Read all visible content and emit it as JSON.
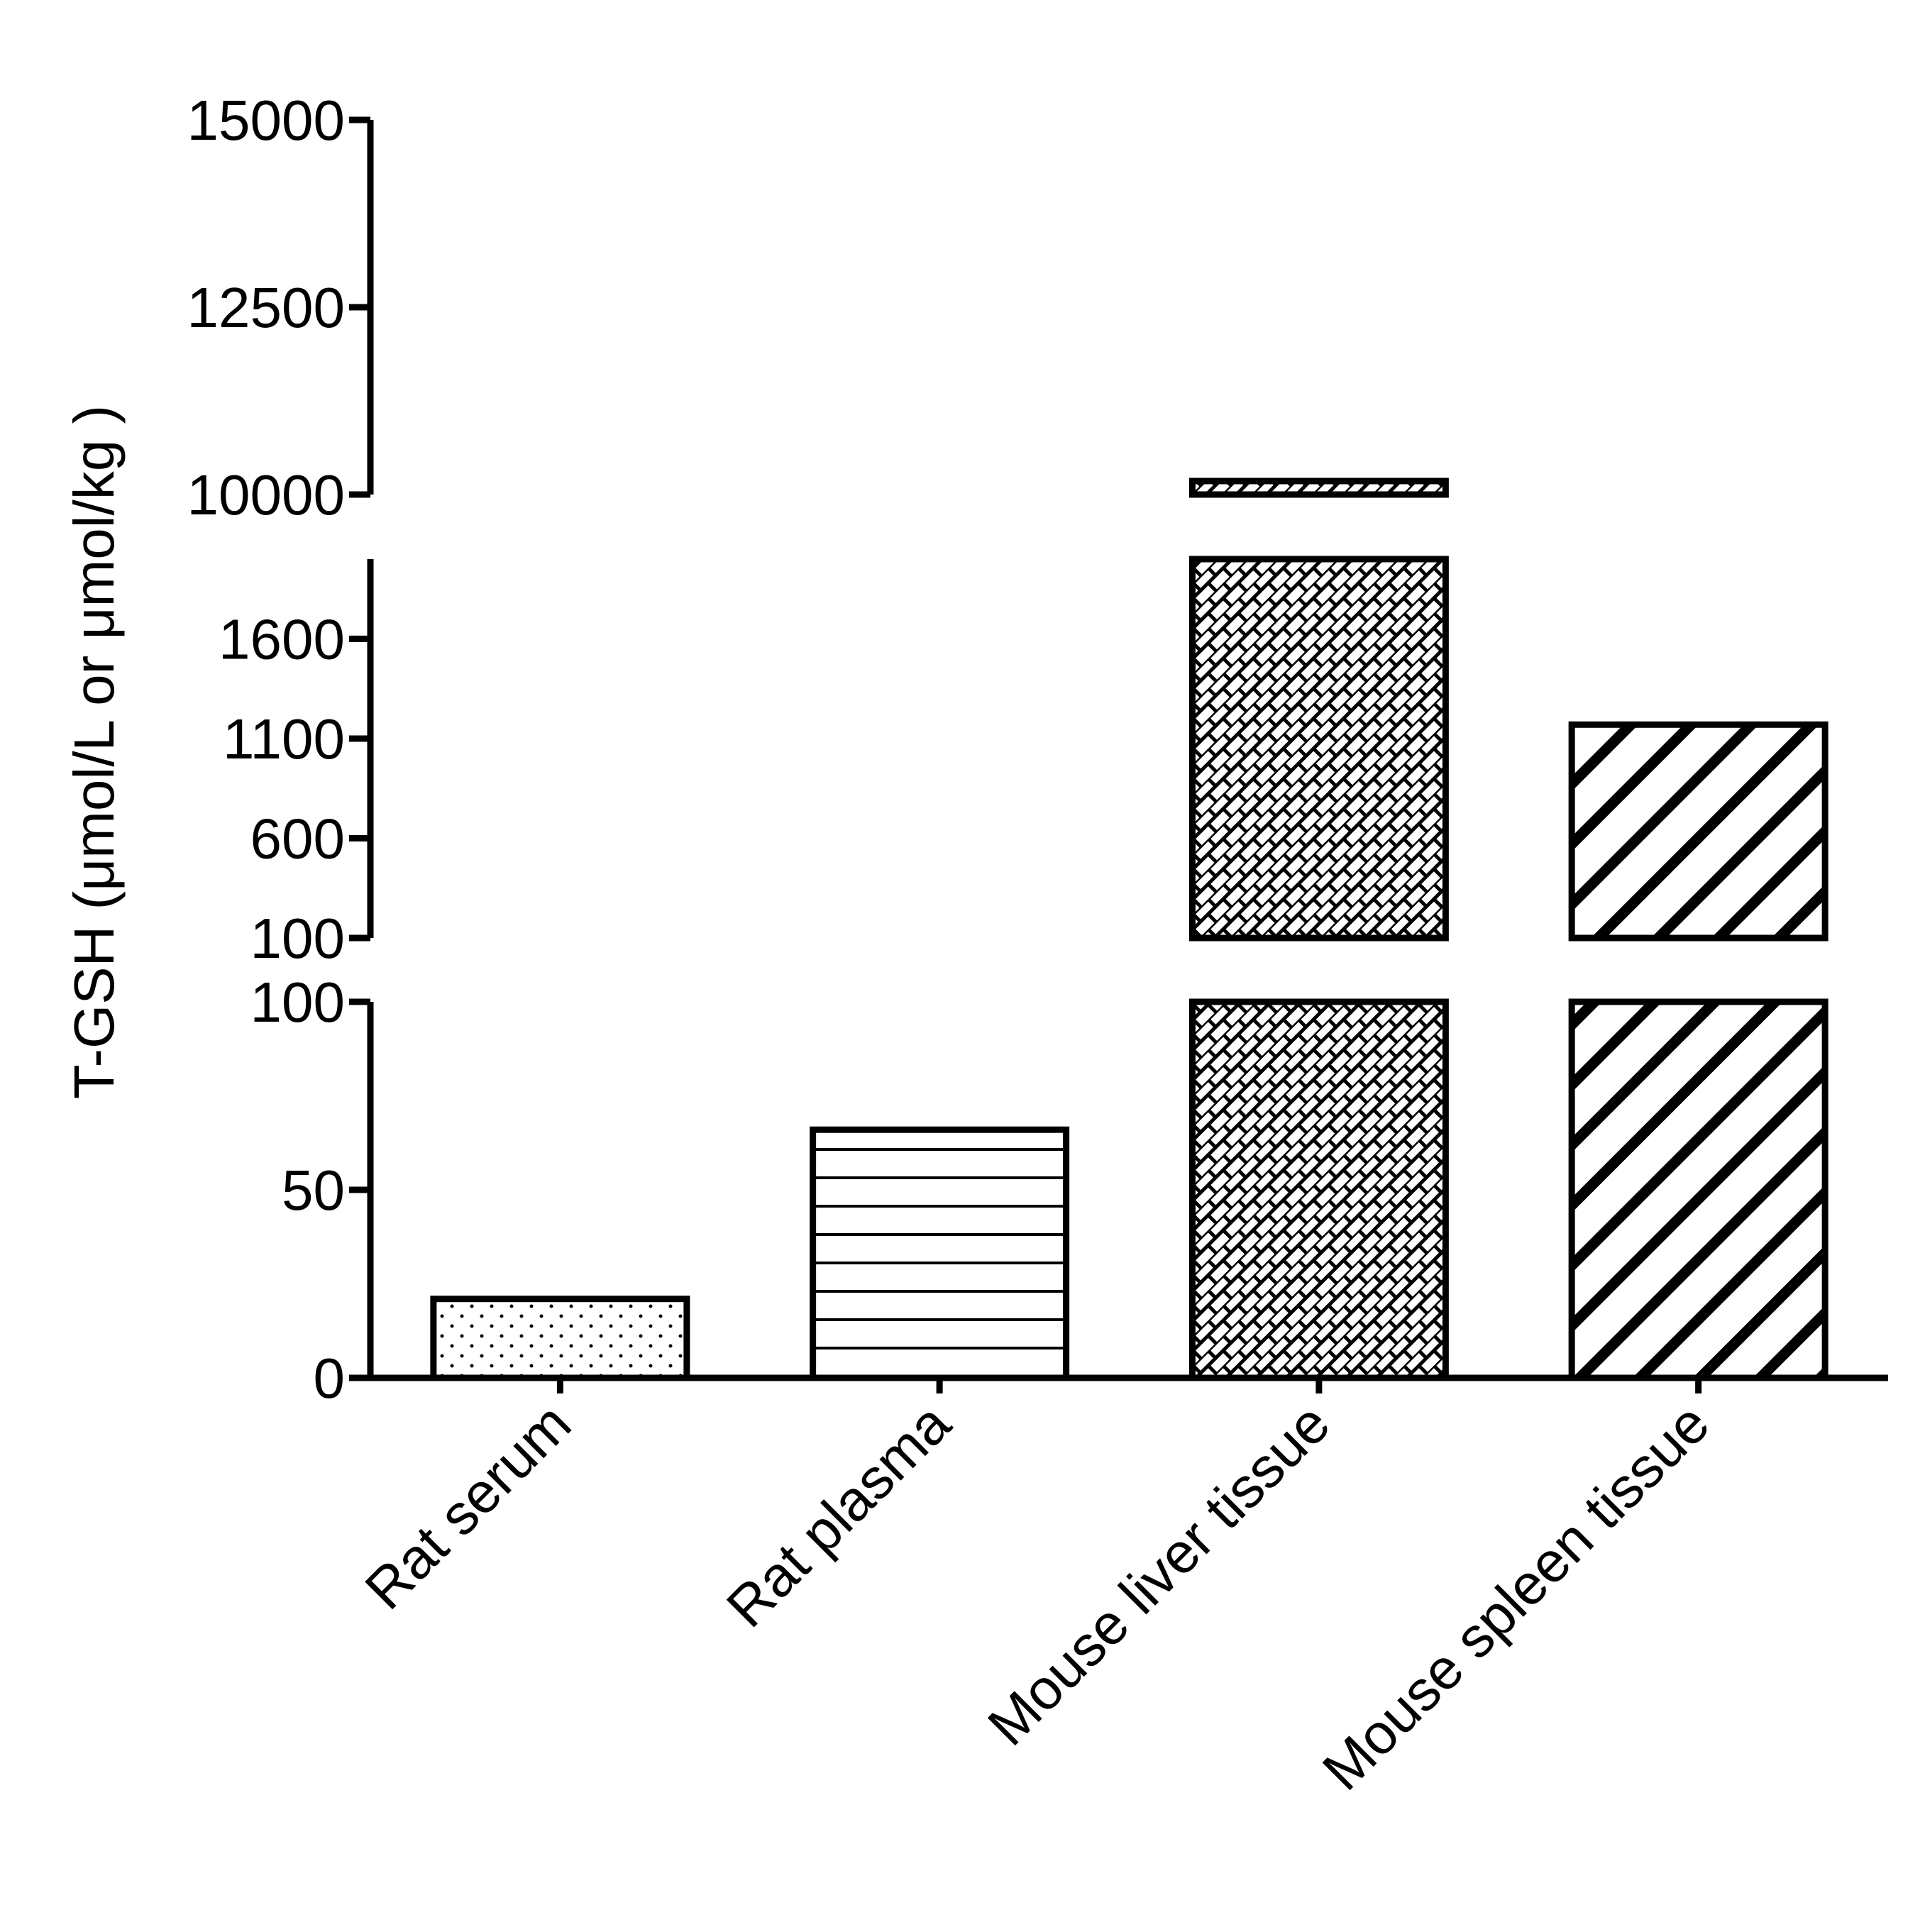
{
  "chart_data": {
    "type": "bar",
    "y_label": "T-GSH (μmol/L or μmol/kg )",
    "categories": [
      "Rat serum",
      "Rat plasma",
      "Mouse liver tissue",
      "Mouse spleen tissue"
    ],
    "values": [
      21,
      66,
      10180,
      1170
    ],
    "patterns": [
      "dots",
      "horizontal",
      "brick",
      "diagonal"
    ],
    "color": "#000000",
    "y_segments": [
      {
        "ylim": [
          0,
          100
        ],
        "yticks": [
          0,
          50,
          100
        ]
      },
      {
        "ylim": [
          100,
          2000
        ],
        "yticks": [
          100,
          600,
          1100,
          1600
        ]
      },
      {
        "ylim": [
          10000,
          15000
        ],
        "yticks": [
          10000,
          12500,
          15000
        ]
      }
    ]
  }
}
